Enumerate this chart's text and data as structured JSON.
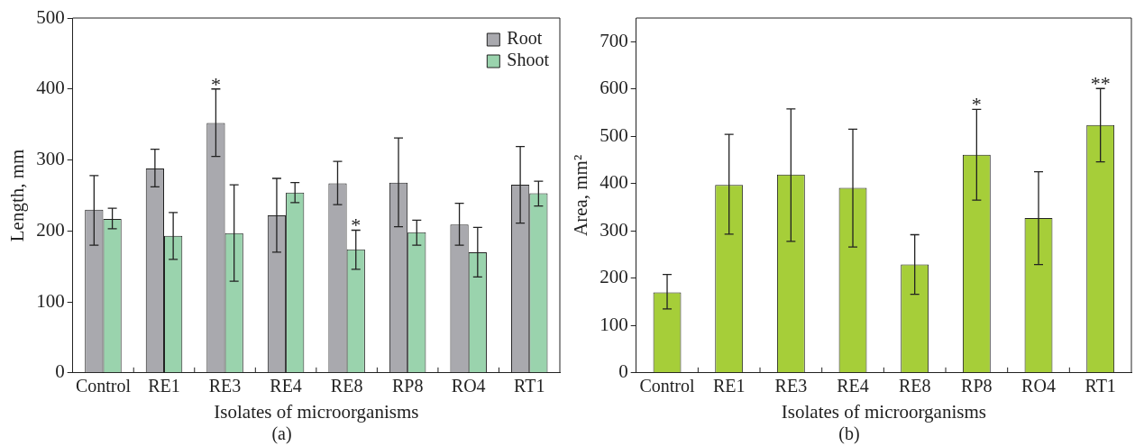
{
  "chart_data": [
    {
      "type": "bar",
      "title": "(a)",
      "xlabel": "Isolates of microorganisms",
      "ylabel": "Length, mm",
      "categories": [
        "Control",
        "RE1",
        "RE3",
        "RE4",
        "RE8",
        "RP8",
        "RO4",
        "RT1"
      ],
      "series": [
        {
          "name": "Root",
          "color": "#a9a9ae",
          "values": [
            230,
            288,
            352,
            222,
            267,
            268,
            209,
            265
          ],
          "errors": [
            [
              180,
              278
            ],
            [
              262,
              315
            ],
            [
              305,
              400
            ],
            [
              170,
              274
            ],
            [
              237,
              298
            ],
            [
              206,
              331
            ],
            [
              180,
              239
            ],
            [
              211,
              319
            ]
          ]
        },
        {
          "name": "Shoot",
          "color": "#9ad3ad",
          "values": [
            217,
            193,
            197,
            254,
            174,
            198,
            170,
            253
          ],
          "errors": [
            [
              203,
              232
            ],
            [
              160,
              226
            ],
            [
              129,
              265
            ],
            [
              240,
              268
            ],
            [
              146,
              201
            ],
            [
              180,
              215
            ],
            [
              135,
              205
            ],
            [
              235,
              270
            ]
          ]
        }
      ],
      "ylim": [
        0,
        500
      ],
      "yticks": [
        0,
        100,
        200,
        300,
        400,
        500
      ],
      "grid": false,
      "legend": "top right",
      "annotations": [
        {
          "text": "*",
          "x": "RE3",
          "y": 352
        },
        {
          "text": "*",
          "x": "RE8",
          "y": 174
        }
      ]
    },
    {
      "type": "bar",
      "title": "(b)",
      "xlabel": "Isolates of microorganisms",
      "ylabel": "Area, mm²",
      "categories": [
        "Control",
        "RE1",
        "RE3",
        "RE4",
        "RE8",
        "RP8",
        "RO4",
        "RT1"
      ],
      "series": [
        {
          "color": "#a6ce39",
          "values": [
            170,
            397,
            419,
            391,
            229,
            461,
            327,
            524
          ],
          "errors": [
            [
              135,
              208
            ],
            [
              293,
              504
            ],
            [
              278,
              558
            ],
            [
              266,
              515
            ],
            [
              166,
              292
            ],
            [
              365,
              557
            ],
            [
              229,
              425
            ],
            [
              446,
              601
            ]
          ]
        }
      ],
      "ylim": [
        0,
        750
      ],
      "yticks": [
        0,
        100,
        200,
        300,
        400,
        500,
        600,
        700
      ],
      "grid": false,
      "legend": false,
      "annotations": [
        {
          "text": "*",
          "x": "RP8",
          "y": 461
        },
        {
          "text": "**",
          "x": "RT1",
          "y": 524
        }
      ]
    }
  ]
}
